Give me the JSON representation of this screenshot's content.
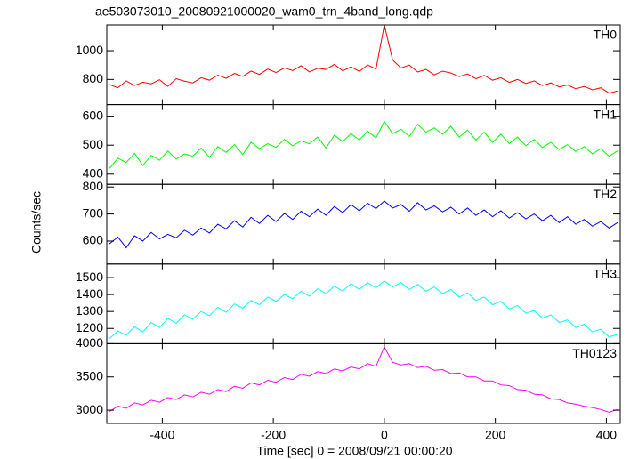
{
  "chart_data": [
    {
      "type": "line",
      "title": "ae503073010_20080921000020_wam0_trn_4band_long.qdp",
      "x": [
        -495,
        -480,
        -465,
        -450,
        -435,
        -420,
        -405,
        -390,
        -375,
        -360,
        -345,
        -330,
        -315,
        -300,
        -285,
        -270,
        -255,
        -240,
        -225,
        -210,
        -195,
        -180,
        -165,
        -150,
        -135,
        -120,
        -105,
        -90,
        -75,
        -60,
        -45,
        -30,
        -15,
        0,
        15,
        30,
        45,
        60,
        75,
        90,
        105,
        120,
        135,
        150,
        165,
        180,
        195,
        210,
        225,
        240,
        255,
        270,
        285,
        300,
        315,
        330,
        345,
        360,
        375,
        390,
        405,
        420
      ],
      "series": [
        {
          "name": "TH0",
          "color": "#ff0000",
          "values": [
            765,
            742,
            790,
            758,
            781,
            770,
            798,
            752,
            805,
            788,
            776,
            812,
            795,
            830,
            808,
            842,
            821,
            858,
            835,
            872,
            848,
            880,
            862,
            895,
            852,
            878,
            870,
            905,
            860,
            888,
            856,
            901,
            872,
            1180,
            935,
            880,
            900,
            852,
            870,
            832,
            858,
            845,
            820,
            838,
            805,
            828,
            795,
            812,
            780,
            800,
            772,
            790,
            758,
            776,
            748,
            762,
            735,
            752,
            728,
            742,
            705,
            720
          ]
        }
      ],
      "xlim": [
        -500,
        425
      ],
      "xticks": [
        -400,
        -200,
        0,
        200,
        400
      ],
      "ylim": [
        625,
        1180
      ],
      "yticks": [
        800,
        1000
      ]
    },
    {
      "type": "line",
      "x": [
        -495,
        -480,
        -465,
        -450,
        -435,
        -420,
        -405,
        -390,
        -375,
        -360,
        -345,
        -330,
        -315,
        -300,
        -285,
        -270,
        -255,
        -240,
        -225,
        -210,
        -195,
        -180,
        -165,
        -150,
        -135,
        -120,
        -105,
        -90,
        -75,
        -60,
        -45,
        -30,
        -15,
        0,
        15,
        30,
        45,
        60,
        75,
        90,
        105,
        120,
        135,
        150,
        165,
        180,
        195,
        210,
        225,
        240,
        255,
        270,
        285,
        300,
        315,
        330,
        345,
        360,
        375,
        390,
        405,
        420
      ],
      "series": [
        {
          "name": "TH1",
          "color": "#00ff00",
          "values": [
            420,
            455,
            440,
            472,
            430,
            465,
            448,
            480,
            452,
            470,
            462,
            490,
            458,
            495,
            475,
            502,
            468,
            510,
            488,
            505,
            492,
            520,
            498,
            515,
            505,
            528,
            490,
            535,
            512,
            540,
            518,
            548,
            525,
            582,
            540,
            555,
            530,
            572,
            545,
            560,
            538,
            565,
            528,
            552,
            518,
            545,
            510,
            538,
            505,
            528,
            498,
            520,
            492,
            510,
            485,
            502,
            478,
            495,
            470,
            488,
            462,
            480
          ]
        }
      ],
      "xlim": [
        -500,
        425
      ],
      "xticks": [
        -400,
        -200,
        0,
        200,
        400
      ],
      "ylim": [
        365,
        640
      ],
      "yticks": [
        400,
        500,
        600
      ]
    },
    {
      "type": "line",
      "ylabel": "Counts/sec",
      "x": [
        -495,
        -480,
        -465,
        -450,
        -435,
        -420,
        -405,
        -390,
        -375,
        -360,
        -345,
        -330,
        -315,
        -300,
        -285,
        -270,
        -255,
        -240,
        -225,
        -210,
        -195,
        -180,
        -165,
        -150,
        -135,
        -120,
        -105,
        -90,
        -75,
        -60,
        -45,
        -30,
        -15,
        0,
        15,
        30,
        45,
        60,
        75,
        90,
        105,
        120,
        135,
        150,
        165,
        180,
        195,
        210,
        225,
        240,
        255,
        270,
        285,
        300,
        315,
        330,
        345,
        360,
        375,
        390,
        405,
        420
      ],
      "series": [
        {
          "name": "TH2",
          "color": "#0000ff",
          "values": [
            590,
            615,
            575,
            620,
            600,
            632,
            608,
            625,
            612,
            640,
            622,
            648,
            630,
            662,
            645,
            675,
            652,
            688,
            665,
            695,
            672,
            702,
            680,
            710,
            690,
            718,
            695,
            728,
            705,
            735,
            712,
            740,
            720,
            748,
            722,
            735,
            710,
            742,
            715,
            730,
            708,
            725,
            700,
            722,
            695,
            715,
            690,
            712,
            685,
            705,
            682,
            700,
            675,
            695,
            668,
            690,
            662,
            680,
            655,
            672,
            648,
            668
          ]
        }
      ],
      "xlim": [
        -500,
        425
      ],
      "xticks": [
        -400,
        -200,
        0,
        200,
        400
      ],
      "ylim": [
        515,
        810
      ],
      "yticks": [
        600,
        700,
        800
      ]
    },
    {
      "type": "line",
      "x": [
        -495,
        -480,
        -465,
        -450,
        -435,
        -420,
        -405,
        -390,
        -375,
        -360,
        -345,
        -330,
        -315,
        -300,
        -285,
        -270,
        -255,
        -240,
        -225,
        -210,
        -195,
        -180,
        -165,
        -150,
        -135,
        -120,
        -105,
        -90,
        -75,
        -60,
        -45,
        -30,
        -15,
        0,
        15,
        30,
        45,
        60,
        75,
        90,
        105,
        120,
        135,
        150,
        165,
        180,
        195,
        210,
        225,
        240,
        255,
        270,
        285,
        300,
        315,
        330,
        345,
        360,
        375,
        390,
        405,
        420
      ],
      "series": [
        {
          "name": "TH3",
          "color": "#00ffff",
          "values": [
            1140,
            1185,
            1160,
            1210,
            1180,
            1235,
            1205,
            1260,
            1230,
            1280,
            1255,
            1300,
            1275,
            1325,
            1295,
            1345,
            1320,
            1365,
            1340,
            1385,
            1360,
            1400,
            1375,
            1420,
            1390,
            1435,
            1405,
            1450,
            1420,
            1465,
            1430,
            1470,
            1440,
            1480,
            1445,
            1470,
            1430,
            1460,
            1420,
            1445,
            1405,
            1430,
            1385,
            1410,
            1365,
            1385,
            1340,
            1360,
            1315,
            1335,
            1290,
            1305,
            1260,
            1280,
            1235,
            1250,
            1205,
            1225,
            1180,
            1195,
            1150,
            1165
          ]
        }
      ],
      "xlim": [
        -500,
        425
      ],
      "xticks": [
        -400,
        -200,
        0,
        200,
        400
      ],
      "ylim": [
        1110,
        1580
      ],
      "yticks": [
        1200,
        1300,
        1400,
        1500
      ]
    },
    {
      "type": "line",
      "xlabel": "Time [sec] 0 = 2008/09/21 00:00:20",
      "x": [
        -495,
        -480,
        -465,
        -450,
        -435,
        -420,
        -405,
        -390,
        -375,
        -360,
        -345,
        -330,
        -315,
        -300,
        -285,
        -270,
        -255,
        -240,
        -225,
        -210,
        -195,
        -180,
        -165,
        -150,
        -135,
        -120,
        -105,
        -90,
        -75,
        -60,
        -45,
        -30,
        -15,
        0,
        15,
        30,
        45,
        60,
        75,
        90,
        105,
        120,
        135,
        150,
        165,
        180,
        195,
        210,
        225,
        240,
        255,
        270,
        285,
        300,
        315,
        330,
        345,
        360,
        375,
        390,
        405,
        420
      ],
      "series": [
        {
          "name": "TH0123",
          "color": "#ff00ff",
          "values": [
            2980,
            3060,
            3030,
            3110,
            3080,
            3150,
            3120,
            3190,
            3160,
            3230,
            3200,
            3270,
            3240,
            3310,
            3280,
            3360,
            3330,
            3410,
            3380,
            3450,
            3420,
            3490,
            3460,
            3540,
            3510,
            3580,
            3550,
            3620,
            3590,
            3650,
            3620,
            3700,
            3660,
            3950,
            3720,
            3680,
            3700,
            3640,
            3660,
            3600,
            3610,
            3550,
            3560,
            3500,
            3500,
            3440,
            3440,
            3380,
            3370,
            3310,
            3300,
            3240,
            3230,
            3170,
            3160,
            3110,
            3090,
            3060,
            3040,
            3010,
            2970,
            3010
          ]
        }
      ],
      "xlim": [
        -500,
        425
      ],
      "xticks": [
        -400,
        -200,
        0,
        200,
        400
      ],
      "ylim": [
        2800,
        4000
      ],
      "yticks": [
        3000,
        3500,
        4000
      ]
    }
  ]
}
